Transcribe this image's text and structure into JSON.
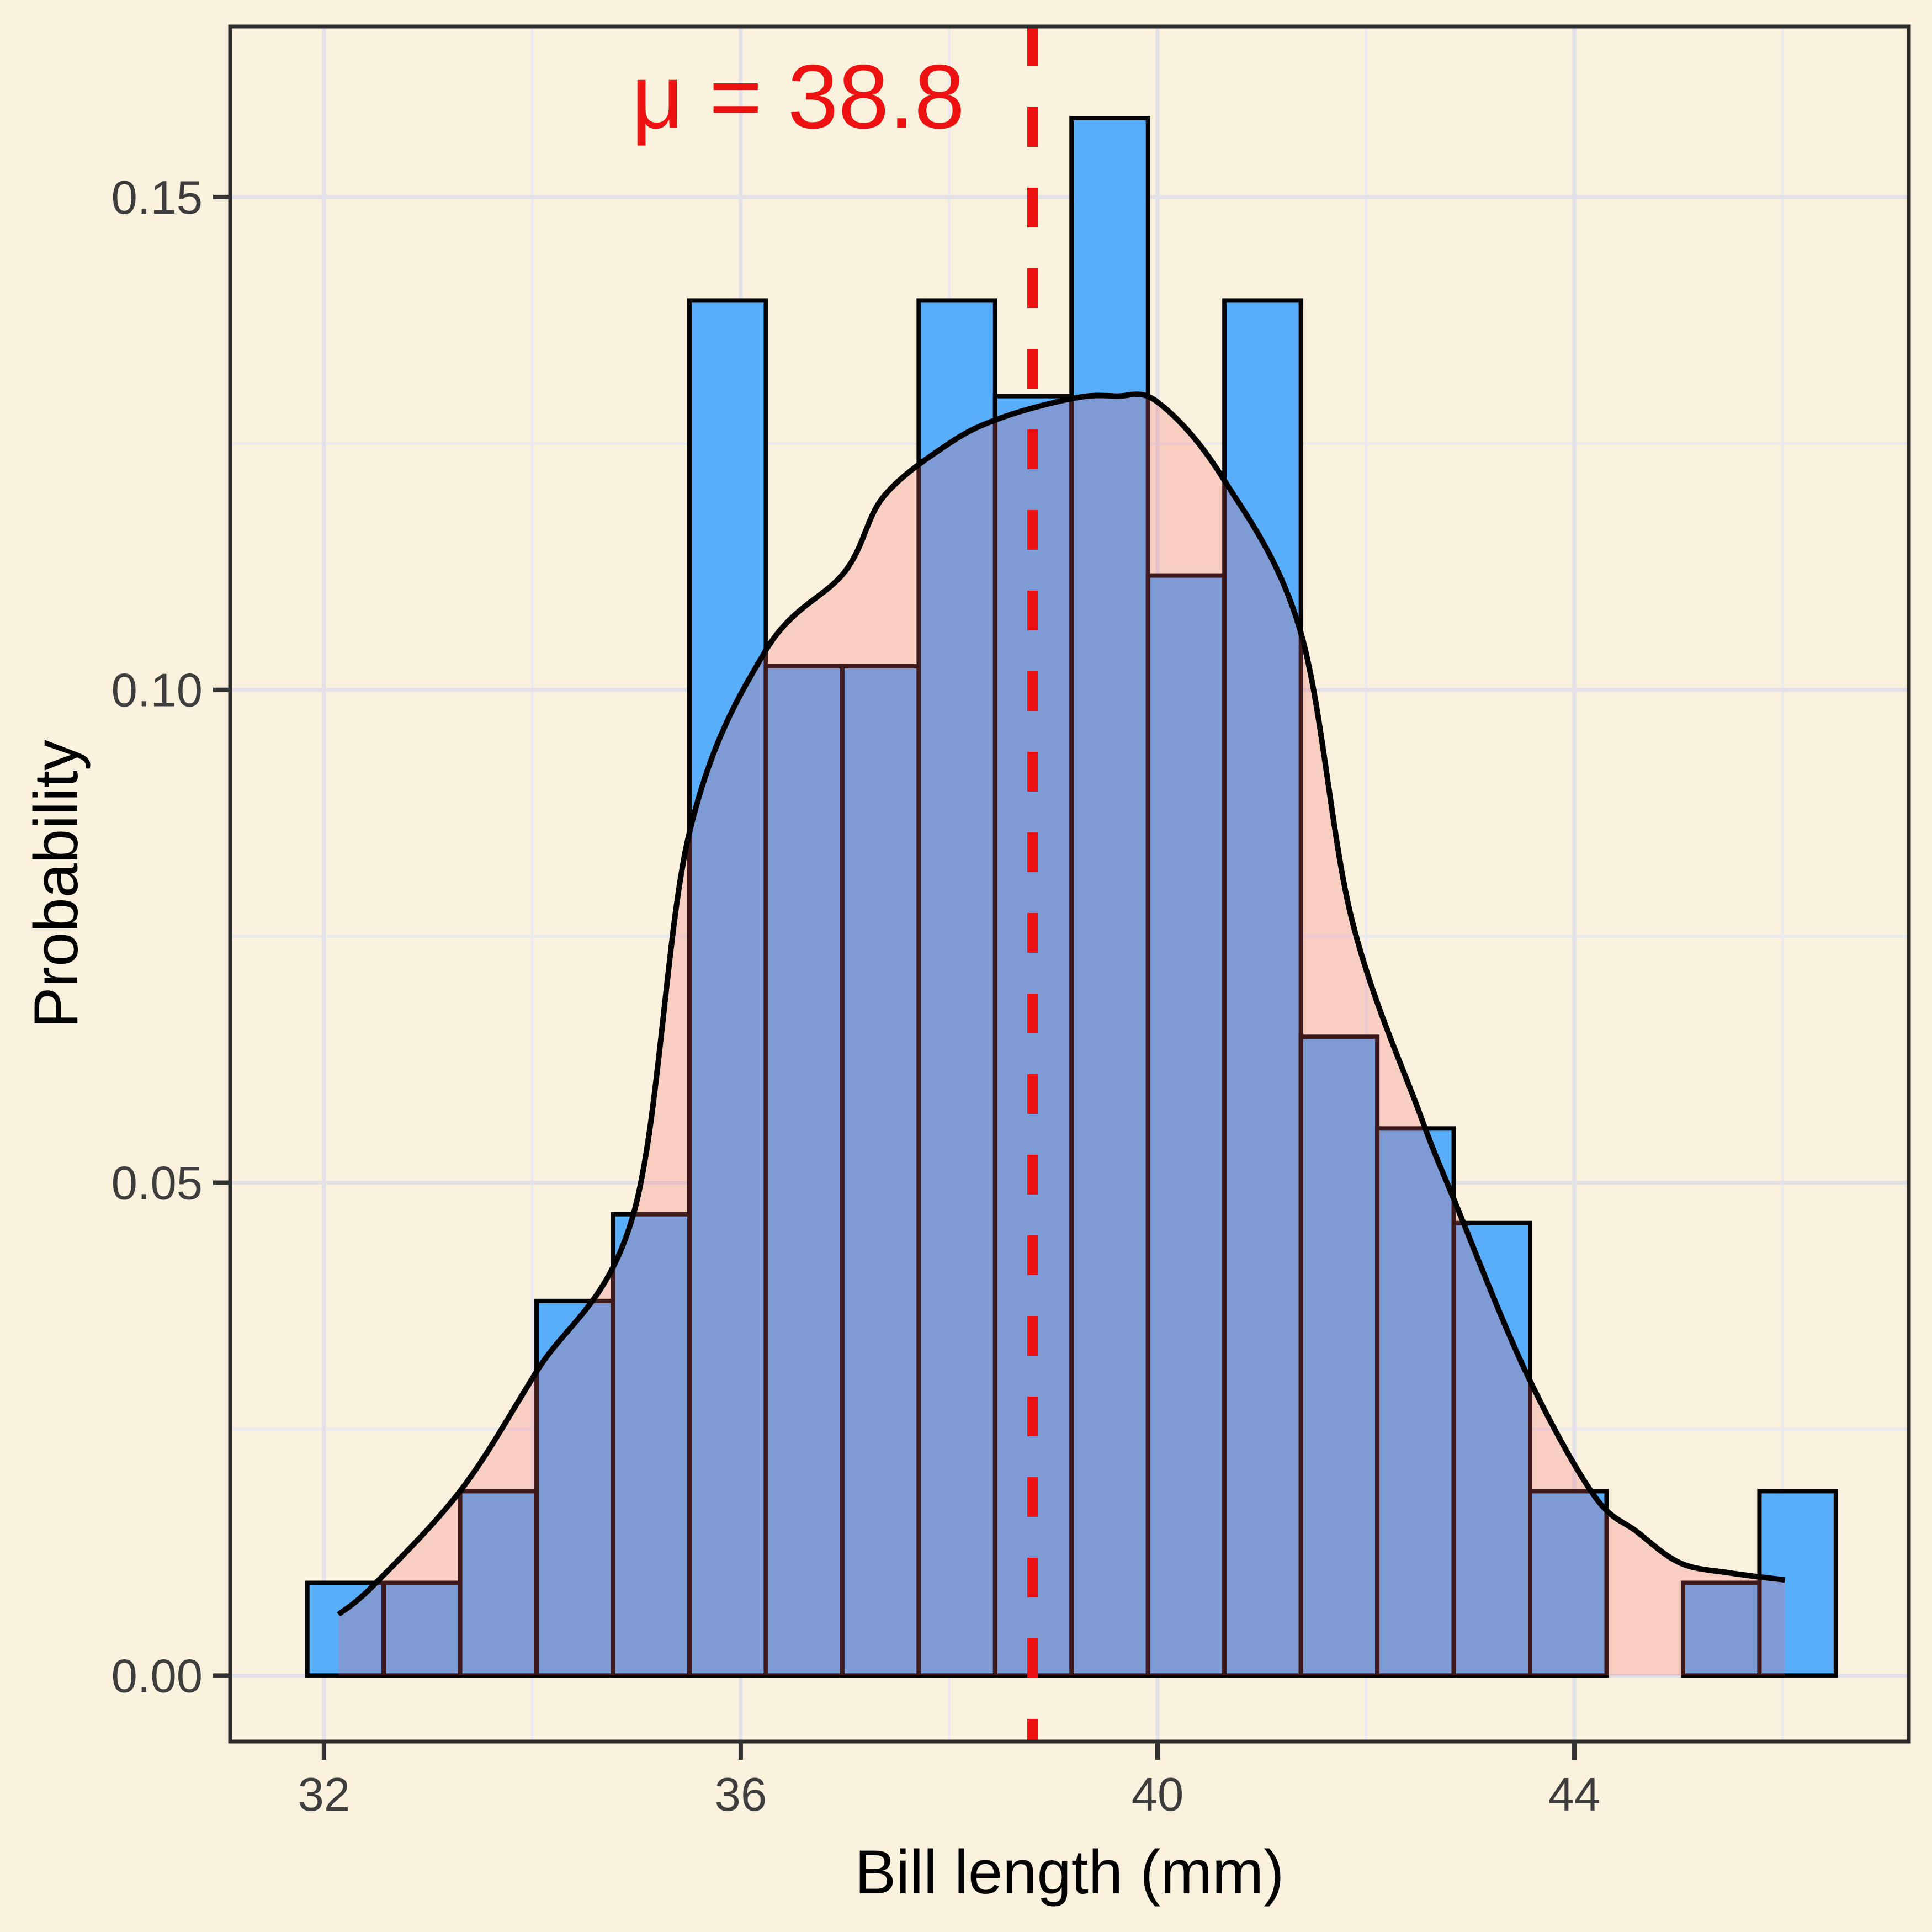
{
  "figure": {
    "background_color": "#FAF2DC",
    "annotation": {
      "text": "μ = 38.8",
      "color": "#EE1111",
      "anchor_x": 36.55,
      "anchor_y": 0.157
    },
    "mean_line": {
      "x": 38.8,
      "color": "#EE1111",
      "style": "dashed"
    },
    "x_axis": {
      "title": "Bill length (mm)",
      "ticks": [
        32,
        36,
        40,
        44
      ],
      "tick_labels": [
        "32",
        "36",
        "40",
        "44"
      ],
      "minor_ticks": [
        34,
        38,
        42,
        46
      ],
      "range": [
        31.1,
        47.21
      ]
    },
    "y_axis": {
      "title": "Probability",
      "ticks": [
        0.0,
        0.05,
        0.1,
        0.15
      ],
      "tick_labels": [
        "0.00",
        "0.05",
        "0.10",
        "0.15"
      ],
      "minor_ticks": [
        0.025,
        0.075,
        0.125
      ],
      "range": [
        -0.0067,
        0.1673
      ]
    },
    "colors": {
      "bar_fill": "#58AEFA",
      "bar_edge": "#000000",
      "density_fill": "rgba(242,100,106,0.25)",
      "density_line": "#000000",
      "grid_major": "#E2E0E8",
      "grid_minor": "#EBE9F0",
      "panel_border": "#2D2D2D",
      "tick_mark": "#333333",
      "tick_label": "#3D3D3D",
      "axis_title": "#000000"
    }
  },
  "chart_data": {
    "type": "bar",
    "subtype": "histogram_with_density_overlay",
    "title": "",
    "xlabel": "Bill length (mm)",
    "ylabel": "Probability",
    "xlim": [
      31.1,
      47.21
    ],
    "ylim": [
      -0.0067,
      0.1673
    ],
    "grid": true,
    "legend": false,
    "mean": 38.8,
    "histogram": {
      "bin_start": 31.84,
      "bin_width": 0.7335,
      "bin_edges": [
        31.84,
        32.57,
        33.31,
        34.04,
        34.77,
        35.51,
        36.24,
        36.97,
        37.71,
        38.44,
        39.17,
        39.91,
        40.64,
        41.37,
        42.11,
        42.84,
        43.57,
        44.31,
        45.04,
        45.77,
        46.51
      ],
      "heights": [
        0.0094,
        0.0094,
        0.0187,
        0.038,
        0.0468,
        0.1395,
        0.1024,
        0.1024,
        0.1395,
        0.1298,
        0.158,
        0.1116,
        0.1395,
        0.0648,
        0.0555,
        0.0459,
        0.0187,
        0,
        0.0094,
        0.0187
      ],
      "counts": [
        1,
        1,
        2,
        4,
        5,
        15,
        11,
        11,
        15,
        14,
        17,
        12,
        15,
        7,
        6,
        5,
        2,
        0,
        1,
        2
      ]
    },
    "density_curve": {
      "points": [
        [
          32.14,
          0.0062
        ],
        [
          32.48,
          0.0092
        ],
        [
          33.32,
          0.0189
        ],
        [
          34.05,
          0.031
        ],
        [
          34.97,
          0.0468
        ],
        [
          35.5,
          0.0852
        ],
        [
          36.24,
          0.104
        ],
        [
          37.0,
          0.112
        ],
        [
          37.37,
          0.1196
        ],
        [
          38.0,
          0.125
        ],
        [
          38.5,
          0.1276
        ],
        [
          39.2,
          0.1296
        ],
        [
          39.6,
          0.1298
        ],
        [
          40.0,
          0.1292
        ],
        [
          40.62,
          0.1216
        ],
        [
          41.37,
          0.106
        ],
        [
          41.86,
          0.0769
        ],
        [
          42.51,
          0.0572
        ],
        [
          42.86,
          0.0479
        ],
        [
          43.53,
          0.0309
        ],
        [
          44.18,
          0.0184
        ],
        [
          44.6,
          0.0146
        ],
        [
          45.02,
          0.0114
        ],
        [
          45.5,
          0.0104
        ],
        [
          46.02,
          0.0097
        ]
      ]
    }
  }
}
